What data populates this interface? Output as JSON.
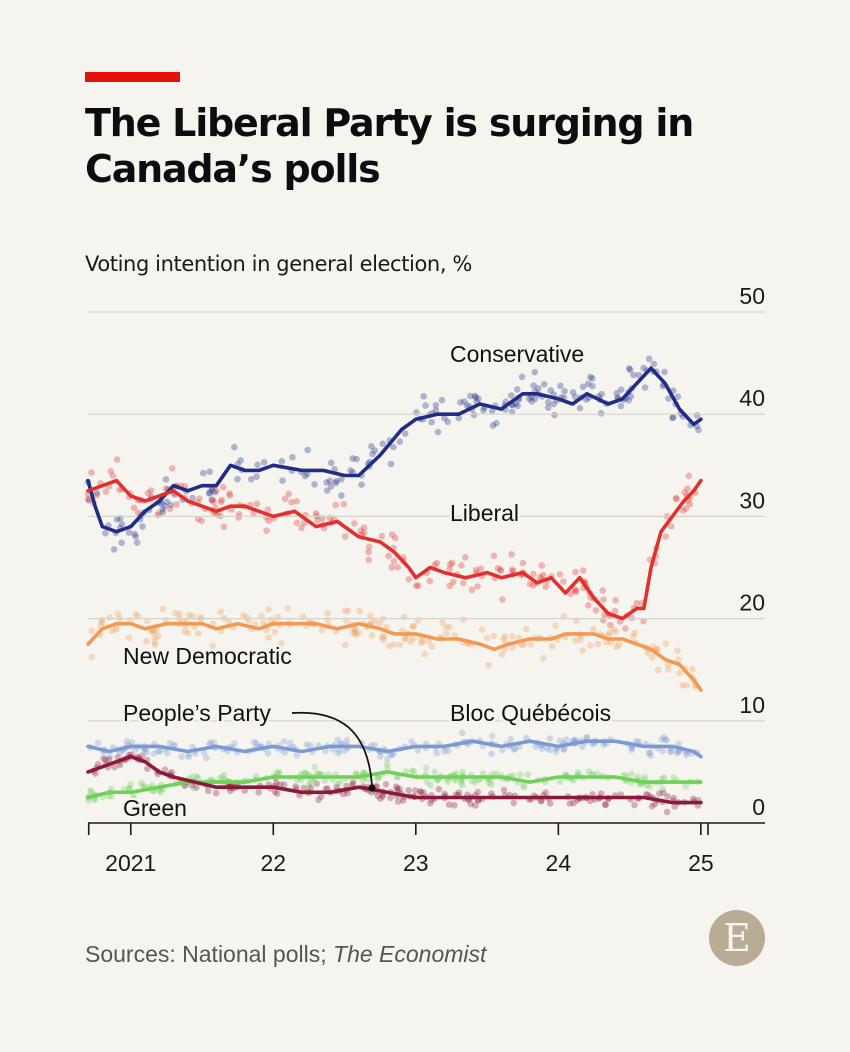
{
  "header": {
    "title": "The Liberal Party is surging in Canada’s polls",
    "subtitle": "Voting intention in general election, %"
  },
  "footer": {
    "source_prefix": "Sources: National polls; ",
    "source_publication": "The Economist",
    "logo_letter": "E"
  },
  "colors": {
    "accent": "#e3120b",
    "conservative": "#1f2d86",
    "liberal": "#e3302f",
    "ndp": "#f29a53",
    "bloc": "#7b9ad3",
    "green": "#6fd05a",
    "ppc": "#8b1a3a"
  },
  "chart_data": {
    "type": "line",
    "title": "The Liberal Party is surging in Canada’s polls",
    "subtitle": "Voting intention in general election, %",
    "xlabel": "",
    "ylabel": "",
    "x_unit": "year",
    "xlim": [
      2020.7,
      2025.45
    ],
    "ylim": [
      0,
      50
    ],
    "y_ticks": [
      0,
      10,
      20,
      30,
      40,
      50
    ],
    "x_ticks": [
      {
        "value": 2021,
        "label": "2021"
      },
      {
        "value": 2022,
        "label": "22"
      },
      {
        "value": 2023,
        "label": "23"
      },
      {
        "value": 2024,
        "label": "24"
      },
      {
        "value": 2025,
        "label": "25"
      }
    ],
    "grid": true,
    "legend": "direct labels",
    "series": [
      {
        "name": "Conservative",
        "color": "#1f2d86",
        "points": [
          [
            2020.7,
            33.5
          ],
          [
            2020.75,
            31
          ],
          [
            2020.8,
            29
          ],
          [
            2020.9,
            28.5
          ],
          [
            2021.0,
            29
          ],
          [
            2021.1,
            30.5
          ],
          [
            2021.2,
            31.5
          ],
          [
            2021.3,
            33
          ],
          [
            2021.4,
            32.5
          ],
          [
            2021.5,
            33
          ],
          [
            2021.6,
            33
          ],
          [
            2021.7,
            35
          ],
          [
            2021.8,
            34.5
          ],
          [
            2021.9,
            34.5
          ],
          [
            2022.0,
            35
          ],
          [
            2022.2,
            34.5
          ],
          [
            2022.35,
            34.5
          ],
          [
            2022.5,
            34
          ],
          [
            2022.6,
            34
          ],
          [
            2022.75,
            36
          ],
          [
            2022.9,
            38.5
          ],
          [
            2023.0,
            39.5
          ],
          [
            2023.15,
            40
          ],
          [
            2023.3,
            40
          ],
          [
            2023.45,
            41
          ],
          [
            2023.6,
            40.5
          ],
          [
            2023.75,
            42
          ],
          [
            2023.85,
            42
          ],
          [
            2024.0,
            41.5
          ],
          [
            2024.1,
            41
          ],
          [
            2024.2,
            42
          ],
          [
            2024.35,
            41
          ],
          [
            2024.45,
            41.5
          ],
          [
            2024.55,
            43
          ],
          [
            2024.65,
            44.5
          ],
          [
            2024.75,
            43
          ],
          [
            2024.85,
            40.5
          ],
          [
            2024.95,
            39
          ],
          [
            2025.0,
            39.5
          ]
        ]
      },
      {
        "name": "Liberal",
        "color": "#e3302f",
        "points": [
          [
            2020.7,
            32.5
          ],
          [
            2020.8,
            33
          ],
          [
            2020.9,
            33.5
          ],
          [
            2021.0,
            32
          ],
          [
            2021.1,
            31.5
          ],
          [
            2021.2,
            32
          ],
          [
            2021.3,
            32.5
          ],
          [
            2021.4,
            31.5
          ],
          [
            2021.5,
            31
          ],
          [
            2021.6,
            30.5
          ],
          [
            2021.7,
            31
          ],
          [
            2021.8,
            31
          ],
          [
            2021.9,
            30.5
          ],
          [
            2022.0,
            30
          ],
          [
            2022.15,
            30.5
          ],
          [
            2022.3,
            29
          ],
          [
            2022.45,
            29.5
          ],
          [
            2022.6,
            28
          ],
          [
            2022.75,
            27.5
          ],
          [
            2022.85,
            26.5
          ],
          [
            2022.95,
            25
          ],
          [
            2023.0,
            24
          ],
          [
            2023.1,
            25
          ],
          [
            2023.2,
            24.5
          ],
          [
            2023.35,
            24
          ],
          [
            2023.5,
            24.5
          ],
          [
            2023.6,
            24
          ],
          [
            2023.75,
            24.5
          ],
          [
            2023.85,
            23.5
          ],
          [
            2023.95,
            24
          ],
          [
            2024.05,
            22.5
          ],
          [
            2024.15,
            24
          ],
          [
            2024.25,
            22
          ],
          [
            2024.35,
            20.5
          ],
          [
            2024.45,
            20
          ],
          [
            2024.55,
            21
          ],
          [
            2024.6,
            21
          ],
          [
            2024.65,
            25
          ],
          [
            2024.72,
            28.5
          ],
          [
            2024.8,
            30
          ],
          [
            2024.88,
            31.5
          ],
          [
            2024.95,
            32.5
          ],
          [
            2025.0,
            33.5
          ]
        ]
      },
      {
        "name": "New Democratic",
        "color": "#f29a53",
        "points": [
          [
            2020.7,
            17.5
          ],
          [
            2020.8,
            19
          ],
          [
            2020.9,
            19.5
          ],
          [
            2021.0,
            19.5
          ],
          [
            2021.1,
            19
          ],
          [
            2021.25,
            19.5
          ],
          [
            2021.4,
            19.5
          ],
          [
            2021.5,
            19.5
          ],
          [
            2021.6,
            19
          ],
          [
            2021.75,
            19.5
          ],
          [
            2021.9,
            19
          ],
          [
            2022.0,
            19.5
          ],
          [
            2022.15,
            19.5
          ],
          [
            2022.3,
            19.5
          ],
          [
            2022.45,
            19
          ],
          [
            2022.6,
            19.5
          ],
          [
            2022.75,
            19
          ],
          [
            2022.85,
            18.5
          ],
          [
            2023.0,
            18.5
          ],
          [
            2023.15,
            18
          ],
          [
            2023.3,
            18
          ],
          [
            2023.45,
            17.5
          ],
          [
            2023.55,
            17
          ],
          [
            2023.65,
            17.5
          ],
          [
            2023.8,
            18
          ],
          [
            2023.95,
            18
          ],
          [
            2024.05,
            18.5
          ],
          [
            2024.15,
            18.5
          ],
          [
            2024.25,
            18.5
          ],
          [
            2024.35,
            18
          ],
          [
            2024.45,
            18
          ],
          [
            2024.55,
            17.5
          ],
          [
            2024.65,
            17
          ],
          [
            2024.75,
            16
          ],
          [
            2024.85,
            15.5
          ],
          [
            2024.95,
            14
          ],
          [
            2025.0,
            13
          ]
        ]
      },
      {
        "name": "Bloc Québécois",
        "color": "#7b9ad3",
        "points": [
          [
            2020.7,
            7.5
          ],
          [
            2020.85,
            7
          ],
          [
            2021.0,
            7.5
          ],
          [
            2021.2,
            7.5
          ],
          [
            2021.4,
            7
          ],
          [
            2021.6,
            7.5
          ],
          [
            2021.8,
            7
          ],
          [
            2022.0,
            7.5
          ],
          [
            2022.2,
            7
          ],
          [
            2022.4,
            7.5
          ],
          [
            2022.6,
            7.5
          ],
          [
            2022.8,
            7
          ],
          [
            2023.0,
            7.5
          ],
          [
            2023.2,
            7.5
          ],
          [
            2023.4,
            8
          ],
          [
            2023.6,
            7.5
          ],
          [
            2023.8,
            8
          ],
          [
            2024.0,
            7.5
          ],
          [
            2024.2,
            8
          ],
          [
            2024.4,
            8
          ],
          [
            2024.6,
            7.5
          ],
          [
            2024.8,
            7.5
          ],
          [
            2024.95,
            7
          ],
          [
            2025.0,
            6.5
          ]
        ]
      },
      {
        "name": "Green",
        "color": "#6fd05a",
        "points": [
          [
            2020.7,
            2.5
          ],
          [
            2020.85,
            3
          ],
          [
            2021.0,
            3
          ],
          [
            2021.2,
            3.5
          ],
          [
            2021.4,
            4
          ],
          [
            2021.6,
            4
          ],
          [
            2021.8,
            4
          ],
          [
            2022.0,
            4.5
          ],
          [
            2022.2,
            4.5
          ],
          [
            2022.4,
            4.5
          ],
          [
            2022.6,
            4.5
          ],
          [
            2022.8,
            5
          ],
          [
            2023.0,
            4.5
          ],
          [
            2023.2,
            4.5
          ],
          [
            2023.4,
            4.5
          ],
          [
            2023.6,
            4.5
          ],
          [
            2023.8,
            4
          ],
          [
            2024.0,
            4.5
          ],
          [
            2024.2,
            4.5
          ],
          [
            2024.4,
            4.5
          ],
          [
            2024.6,
            4
          ],
          [
            2024.8,
            4
          ],
          [
            2025.0,
            4
          ]
        ]
      },
      {
        "name": "People’s Party",
        "color": "#8b1a3a",
        "points": [
          [
            2020.7,
            5
          ],
          [
            2020.8,
            5.5
          ],
          [
            2020.9,
            6
          ],
          [
            2021.0,
            6.5
          ],
          [
            2021.1,
            6
          ],
          [
            2021.2,
            5
          ],
          [
            2021.3,
            4.5
          ],
          [
            2021.45,
            4
          ],
          [
            2021.6,
            3.5
          ],
          [
            2021.8,
            3.5
          ],
          [
            2022.0,
            3.5
          ],
          [
            2022.2,
            3
          ],
          [
            2022.4,
            3
          ],
          [
            2022.6,
            3.5
          ],
          [
            2022.8,
            3
          ],
          [
            2023.0,
            2.5
          ],
          [
            2023.2,
            2.5
          ],
          [
            2023.4,
            2.5
          ],
          [
            2023.6,
            2.5
          ],
          [
            2023.8,
            2.5
          ],
          [
            2024.0,
            2.5
          ],
          [
            2024.2,
            2.5
          ],
          [
            2024.4,
            2.5
          ],
          [
            2024.6,
            2.5
          ],
          [
            2024.8,
            2
          ],
          [
            2025.0,
            2
          ]
        ]
      }
    ],
    "annotations": [
      {
        "label": "Conservative",
        "series": "Conservative"
      },
      {
        "label": "Liberal",
        "series": "Liberal"
      },
      {
        "label": "New Democratic",
        "series": "New Democratic"
      },
      {
        "label": "People’s Party",
        "series": "People’s Party"
      },
      {
        "label": "Bloc Québécois",
        "series": "Bloc Québécois"
      },
      {
        "label": "Green",
        "series": "Green"
      }
    ]
  }
}
